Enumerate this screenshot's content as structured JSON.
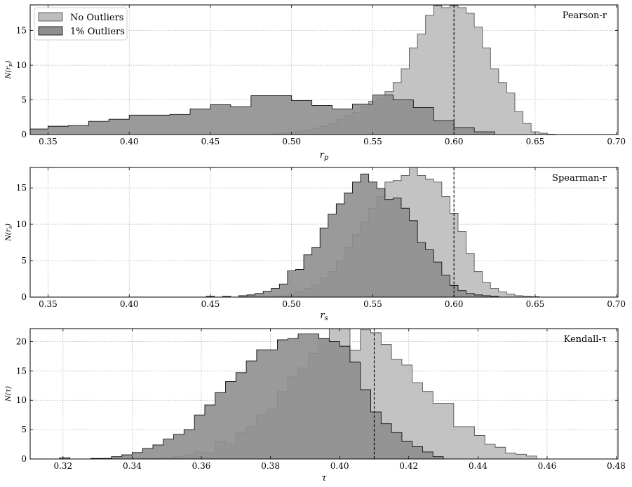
{
  "legend": {
    "entries": [
      {
        "label": "No Outliers",
        "color": "#bdbdbd",
        "edge": "#555555"
      },
      {
        "label": "1% Outliers",
        "color": "#8f8f8f",
        "edge": "#111111"
      }
    ],
    "placement": "top-left"
  },
  "chart_data": [
    {
      "type": "histogram",
      "title": "Pearson-r",
      "xlabel": "r_p",
      "ylabel": "N(r_p)",
      "xlim": [
        0.339,
        0.701
      ],
      "ylim": [
        0,
        18.7
      ],
      "xticks": [
        0.35,
        0.4,
        0.45,
        0.5,
        0.55,
        0.6,
        0.65,
        0.7
      ],
      "xtick_labels": [
        "0.35",
        "0.40",
        "0.45",
        "0.50",
        "0.55",
        "0.60",
        "0.65",
        "0.70"
      ],
      "yticks": [
        0,
        5,
        10,
        15
      ],
      "ytick_labels": [
        "0",
        "5",
        "10",
        "15"
      ],
      "true_value": 0.6,
      "grid": true,
      "series": [
        {
          "name": "No Outliers",
          "color": "#bdbdbd",
          "edge": "#555555",
          "edges": [
            0.4875,
            0.4925,
            0.4975,
            0.5025,
            0.5075,
            0.5125,
            0.5175,
            0.5225,
            0.5275,
            0.5325,
            0.5375,
            0.5425,
            0.5475,
            0.5525,
            0.5575,
            0.5625,
            0.5675,
            0.5725,
            0.5775,
            0.5825,
            0.5875,
            0.5925,
            0.5975,
            0.6025,
            0.6075,
            0.6125,
            0.6175,
            0.6225,
            0.6275,
            0.6325,
            0.6375,
            0.6425,
            0.6475,
            0.6525,
            0.6575,
            0.6625
          ],
          "counts": [
            0.1,
            0.2,
            0.3,
            0.5,
            0.6,
            0.9,
            1.2,
            1.6,
            2.2,
            2.8,
            3.2,
            4.1,
            4.8,
            5.2,
            6.2,
            7.5,
            9.5,
            12.5,
            14.5,
            17.2,
            18.6,
            18.3,
            18.6,
            18.3,
            17.5,
            15.5,
            12.5,
            9.5,
            7.5,
            6.0,
            3.3,
            1.6,
            0.4,
            0.2,
            0.05
          ]
        },
        {
          "name": "1% Outliers",
          "color": "#8f8f8f",
          "edge": "#111111",
          "edges": [
            0.339,
            0.35,
            0.3625,
            0.375,
            0.3875,
            0.4,
            0.4125,
            0.425,
            0.4375,
            0.45,
            0.4625,
            0.475,
            0.4875,
            0.5,
            0.5125,
            0.525,
            0.5375,
            0.55,
            0.5625,
            0.575,
            0.5875,
            0.6,
            0.6125,
            0.625,
            0.6375
          ],
          "counts": [
            0.8,
            1.2,
            1.3,
            1.9,
            2.2,
            2.8,
            2.8,
            2.9,
            3.7,
            4.3,
            4.0,
            5.6,
            5.6,
            4.9,
            4.2,
            3.7,
            4.4,
            5.7,
            5.0,
            3.9,
            2.0,
            1.0,
            0.4,
            0.0
          ]
        }
      ]
    },
    {
      "type": "histogram",
      "title": "Spearman-r",
      "xlabel": "r_s",
      "ylabel": "N(r_s)",
      "xlim": [
        0.339,
        0.701
      ],
      "ylim": [
        0,
        17.8
      ],
      "xticks": [
        0.35,
        0.4,
        0.45,
        0.5,
        0.55,
        0.6,
        0.65,
        0.7
      ],
      "xtick_labels": [
        "0.35",
        "0.40",
        "0.45",
        "0.50",
        "0.55",
        "0.60",
        "0.65",
        "0.70"
      ],
      "yticks": [
        0,
        5,
        10,
        15
      ],
      "ytick_labels": [
        "0",
        "5",
        "10",
        "15"
      ],
      "true_value": 0.6,
      "grid": true,
      "series": [
        {
          "name": "No Outliers",
          "color": "#bdbdbd",
          "edge": "#555555",
          "edges": [
            0.4875,
            0.4925,
            0.4975,
            0.5025,
            0.5075,
            0.5125,
            0.5175,
            0.5225,
            0.5275,
            0.5325,
            0.5375,
            0.5425,
            0.5475,
            0.5525,
            0.5575,
            0.5625,
            0.5675,
            0.5725,
            0.5775,
            0.5825,
            0.5875,
            0.5925,
            0.5975,
            0.6025,
            0.6075,
            0.6125,
            0.6175,
            0.6225,
            0.6275,
            0.6325,
            0.6375,
            0.6425,
            0.6475,
            0.6525,
            0.6575,
            0.6625
          ],
          "counts": [
            0.1,
            0.2,
            0.4,
            0.8,
            1.2,
            1.7,
            2.6,
            3.5,
            5.0,
            6.8,
            8.6,
            10.3,
            12.2,
            13.8,
            15.8,
            16.0,
            16.7,
            17.8,
            16.7,
            16.2,
            15.8,
            13.8,
            11.5,
            9.0,
            6.0,
            3.5,
            2.0,
            1.2,
            0.7,
            0.4,
            0.2,
            0.1,
            0.05,
            0.0,
            0.0
          ]
        },
        {
          "name": "1% Outliers",
          "color": "#8f8f8f",
          "edge": "#111111",
          "edges": [
            0.4475,
            0.4525,
            0.4575,
            0.4625,
            0.4675,
            0.4725,
            0.4775,
            0.4825,
            0.4875,
            0.4925,
            0.4975,
            0.5025,
            0.5075,
            0.5125,
            0.5175,
            0.5225,
            0.5275,
            0.5325,
            0.5375,
            0.5425,
            0.5475,
            0.5525,
            0.5575,
            0.5625,
            0.5675,
            0.5725,
            0.5775,
            0.5825,
            0.5875,
            0.5925,
            0.5975,
            0.6025,
            0.6075,
            0.6125,
            0.6175,
            0.6225,
            0.6275
          ],
          "counts": [
            0.1,
            0.0,
            0.1,
            0.0,
            0.2,
            0.3,
            0.5,
            0.8,
            1.2,
            1.8,
            3.6,
            3.8,
            5.8,
            6.8,
            9.5,
            11.4,
            12.8,
            14.3,
            15.8,
            16.9,
            15.8,
            14.9,
            13.4,
            13.6,
            12.2,
            10.5,
            7.5,
            6.5,
            4.8,
            3.0,
            1.6,
            0.9,
            0.5,
            0.3,
            0.2,
            0.1
          ]
        }
      ]
    },
    {
      "type": "histogram",
      "title": "Kendall-τ",
      "xlabel": "τ",
      "ylabel": "N(τ)",
      "xlim": [
        0.3105,
        0.4805
      ],
      "ylim": [
        0,
        22.2
      ],
      "xticks": [
        0.32,
        0.34,
        0.36,
        0.38,
        0.4,
        0.42,
        0.44,
        0.46,
        0.48
      ],
      "xtick_labels": [
        "0.32",
        "0.34",
        "0.36",
        "0.38",
        "0.40",
        "0.42",
        "0.44",
        "0.46",
        "0.48"
      ],
      "yticks": [
        0,
        5,
        10,
        15,
        20
      ],
      "ytick_labels": [
        "0",
        "5",
        "10",
        "15",
        "20"
      ],
      "true_value": 0.41,
      "grid": true,
      "series": [
        {
          "name": "No Outliers",
          "color": "#bdbdbd",
          "edge": "#555555",
          "edges": [
            0.343,
            0.346,
            0.349,
            0.352,
            0.355,
            0.358,
            0.361,
            0.364,
            0.367,
            0.37,
            0.373,
            0.376,
            0.379,
            0.382,
            0.385,
            0.388,
            0.391,
            0.394,
            0.397,
            0.4,
            0.403,
            0.406,
            0.409,
            0.412,
            0.415,
            0.418,
            0.421,
            0.424,
            0.427,
            0.43,
            0.433,
            0.436,
            0.439,
            0.442,
            0.445,
            0.448,
            0.451,
            0.454,
            0.457
          ],
          "counts": [
            0.05,
            0.1,
            0.2,
            0.4,
            0.7,
            1.2,
            1.0,
            3.0,
            2.6,
            4.5,
            5.5,
            7.5,
            8.5,
            11.5,
            14.0,
            15.5,
            18.0,
            20.5,
            22.2,
            22.2,
            18.5,
            22.0,
            21.5,
            19.5,
            17.0,
            16.0,
            13.0,
            11.5,
            9.5,
            9.5,
            5.5,
            5.5,
            4.0,
            2.5,
            2.0,
            1.0,
            0.8,
            0.5
          ]
        },
        {
          "name": "1% Outliers",
          "color": "#8f8f8f",
          "edge": "#111111",
          "edges": [
            0.319,
            0.322,
            0.325,
            0.328,
            0.331,
            0.334,
            0.337,
            0.34,
            0.343,
            0.346,
            0.349,
            0.352,
            0.355,
            0.358,
            0.361,
            0.364,
            0.367,
            0.37,
            0.373,
            0.376,
            0.379,
            0.382,
            0.385,
            0.388,
            0.391,
            0.394,
            0.397,
            0.4,
            0.403,
            0.406,
            0.409,
            0.412,
            0.415,
            0.418,
            0.421,
            0.424,
            0.427,
            0.43
          ],
          "counts": [
            0.2,
            0.0,
            0.0,
            0.1,
            0.1,
            0.4,
            0.7,
            1.1,
            1.8,
            2.4,
            3.4,
            4.2,
            5.0,
            7.5,
            9.2,
            11.3,
            13.2,
            14.7,
            16.7,
            18.6,
            18.6,
            20.3,
            20.5,
            21.3,
            21.3,
            20.5,
            20.0,
            19.2,
            16.5,
            11.8,
            8.0,
            6.0,
            4.5,
            3.0,
            2.1,
            1.2,
            0.4
          ]
        }
      ]
    }
  ]
}
